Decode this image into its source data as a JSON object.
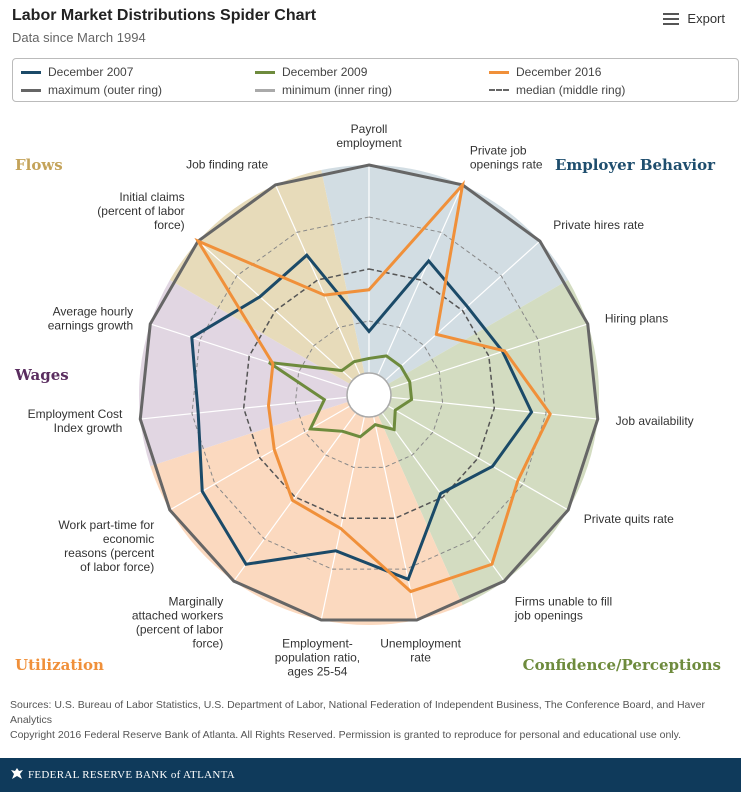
{
  "header": {
    "title": "Labor Market Distributions Spider Chart",
    "subtitle": "Data since March 1994",
    "export_label": "Export"
  },
  "legend": {
    "items": [
      {
        "label": "December 2007",
        "color": "#1b4a68",
        "style": "solid"
      },
      {
        "label": "December 2009",
        "color": "#6e8b3d",
        "style": "solid"
      },
      {
        "label": "December 2016",
        "color": "#f0903a",
        "style": "solid"
      },
      {
        "label": "maximum (outer ring)",
        "color": "#666666",
        "style": "solid"
      },
      {
        "label": "minimum (inner ring)",
        "color": "#aaaaaa",
        "style": "solid"
      },
      {
        "label": "median (middle ring)",
        "color": "#666666",
        "style": "dashed"
      }
    ]
  },
  "chart_data": {
    "type": "radar",
    "axes": [
      "Payroll employment",
      "Private job openings rate",
      "Private hires rate",
      "Hiring plans",
      "Job availability",
      "Private quits rate",
      "Firms unable to fill job openings",
      "Unemployment rate",
      "Employment-population ratio, ages 25-54",
      "Marginally attached workers (percent of labor force)",
      "Work part-time for economic reasons (percent of labor force)",
      "Employment Cost Index growth",
      "Average hourly earnings growth",
      "Initial claims (percent of labor force)",
      "Job finding rate"
    ],
    "axis_labels": [
      "Payroll\nemployment",
      "Private job\nopenings rate",
      "Private hires rate",
      "Hiring plans",
      "Job availability",
      "Private quits rate",
      "Firms unable to fill\njob openings",
      "Unemployment\nrate",
      "Employment-\npopulation ratio,\nages 25-54",
      "Marginally\nattached workers\n(percent of labor\nforce)",
      "Work part-time for\neconomic\nreasons (percent\nof labor force)",
      "Employment Cost\nIndex growth",
      "Average hourly\nearnings growth",
      "Initial claims\n(percent of labor\nforce)",
      "Job finding rate"
    ],
    "range": [
      0,
      1
    ],
    "rings": {
      "minimum": 0,
      "median": 0.5,
      "maximum": 1
    },
    "series": [
      {
        "name": "December 2007",
        "color": "#1b4a68",
        "values": [
          0.2,
          0.6,
          0.53,
          0.57,
          0.68,
          0.58,
          0.48,
          0.8,
          0.66,
          0.9,
          0.82,
          0.72,
          0.79,
          0.6,
          0.63
        ]
      },
      {
        "name": "December 2009",
        "color": "#6e8b3d",
        "values": [
          0.07,
          0.1,
          0.1,
          0.1,
          0.1,
          0.04,
          0.1,
          0.04,
          0.1,
          0.11,
          0.22,
          0.11,
          0.4,
          0.07,
          0.07
        ]
      },
      {
        "name": "December 2016",
        "color": "#f0903a",
        "values": [
          0.4,
          1.0,
          0.33,
          0.58,
          0.77,
          0.72,
          0.9,
          0.86,
          0.55,
          0.52,
          0.42,
          0.38,
          0.38,
          1.0,
          0.42
        ]
      }
    ],
    "groups": [
      {
        "name": "Employer Behavior",
        "axes": [
          0,
          1,
          2
        ],
        "color": "#1f4e6e"
      },
      {
        "name": "Confidence/Perceptions",
        "axes": [
          3,
          4,
          5,
          6
        ],
        "color": "#6e8b3d"
      },
      {
        "name": "Utilization",
        "axes": [
          7,
          8,
          9,
          10
        ],
        "color": "#f0903a"
      },
      {
        "name": "Wages",
        "axes": [
          11,
          12
        ],
        "color": "#5a2d5f"
      },
      {
        "name": "Flows",
        "axes": [
          13,
          14
        ],
        "color": "#c4a35a"
      }
    ],
    "sector_colors": {
      "Employer Behavior": "#d2dde3",
      "Confidence/Perceptions": "#d3dcc1",
      "Utilization": "#fbd9bf",
      "Wages": "#e1d6e2",
      "Flows": "#e7dbba"
    },
    "legend_position": "top"
  },
  "sources": {
    "line1": "Sources: U.S. Bureau of Labor Statistics, U.S. Department of Labor, National Federation of Independent Business, The Conference Board, and Haver Analytics",
    "line2": "Copyright 2016 Federal Reserve Bank of Atlanta. All Rights Reserved. Permission is granted to reproduce for personal and educational use only."
  },
  "footer": {
    "logo_text": "FEDERAL RESERVE BANK of ATLANTA"
  }
}
